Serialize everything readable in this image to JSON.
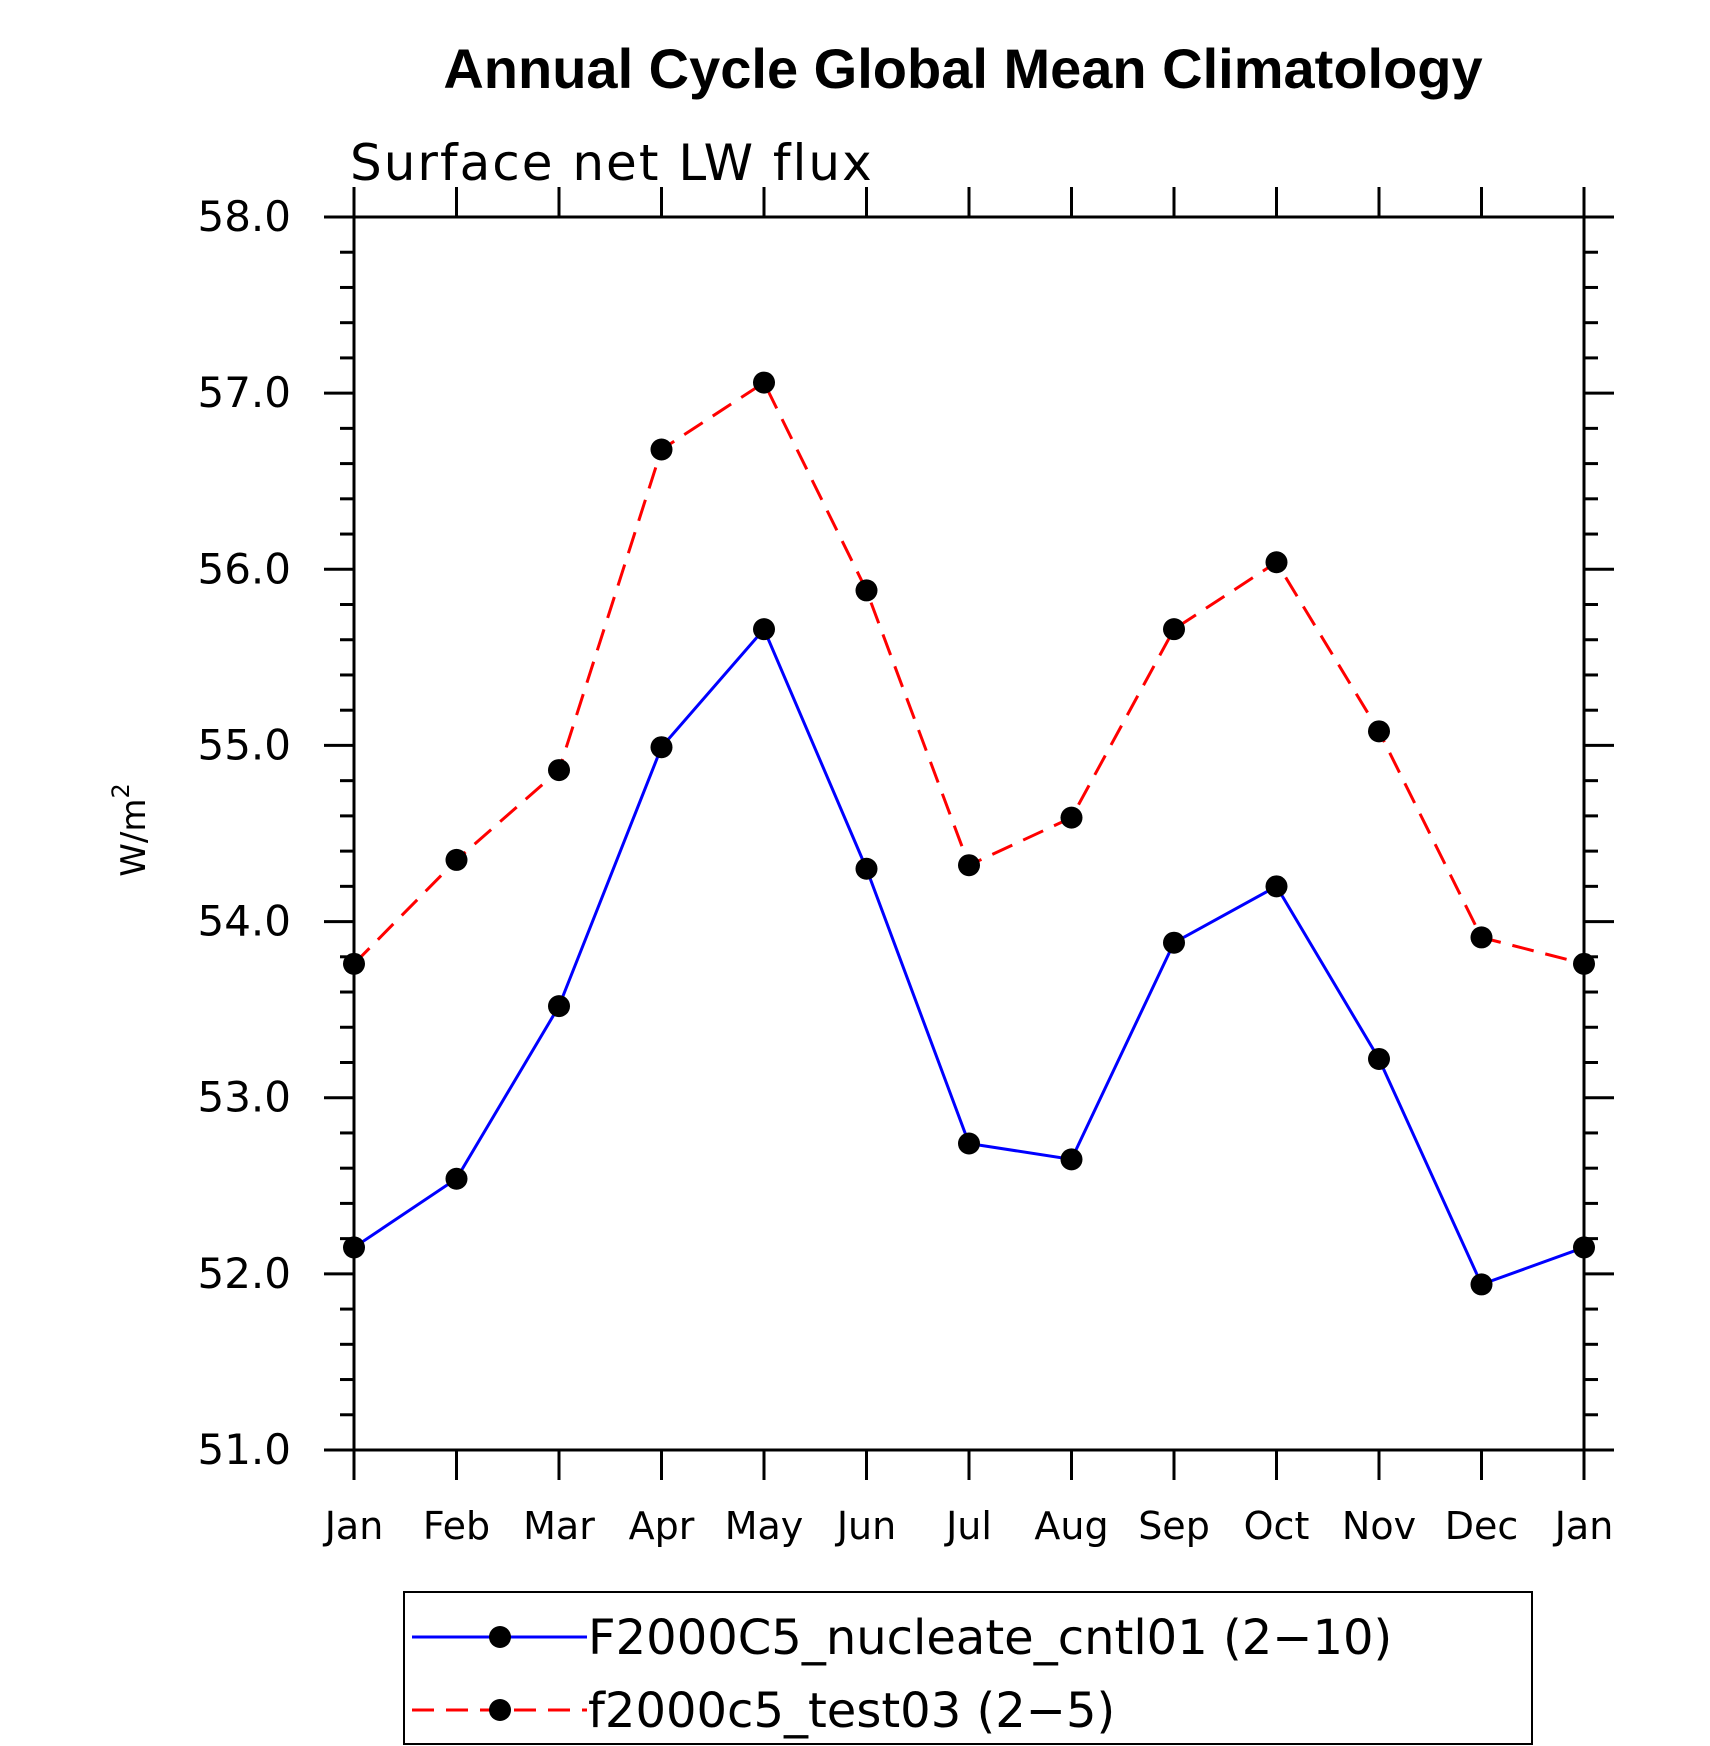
{
  "chart_data": {
    "type": "line",
    "title": "Annual Cycle Global Mean Climatology",
    "subtitle": "Surface net LW flux",
    "ylabel": {
      "base": "W/m",
      "sup": "2"
    },
    "xlabel": "",
    "categories": [
      "Jan",
      "Feb",
      "Mar",
      "Apr",
      "May",
      "Jun",
      "Jul",
      "Aug",
      "Sep",
      "Oct",
      "Nov",
      "Dec",
      "Jan"
    ],
    "ylim": [
      51.0,
      58.0
    ],
    "yticks": [
      "51.0",
      "52.0",
      "53.0",
      "54.0",
      "55.0",
      "56.0",
      "57.0",
      "58.0"
    ],
    "legend_position": "bottom-center",
    "grid": false,
    "series": [
      {
        "name": "F2000C5_nucleate_cntl01 (2−10)",
        "color": "#0000ff",
        "style": "solid",
        "marker": "filled-circle",
        "values": [
          52.15,
          52.54,
          53.52,
          54.99,
          55.66,
          54.3,
          52.74,
          52.65,
          53.88,
          54.2,
          53.22,
          51.94,
          52.15
        ]
      },
      {
        "name": "f2000c5_test03 (2−5)",
        "color": "#ff0000",
        "style": "dashed",
        "marker": "filled-circle",
        "values": [
          53.76,
          54.35,
          54.86,
          56.68,
          57.06,
          55.88,
          54.32,
          54.59,
          55.66,
          56.04,
          55.08,
          53.91,
          53.76
        ]
      }
    ]
  }
}
